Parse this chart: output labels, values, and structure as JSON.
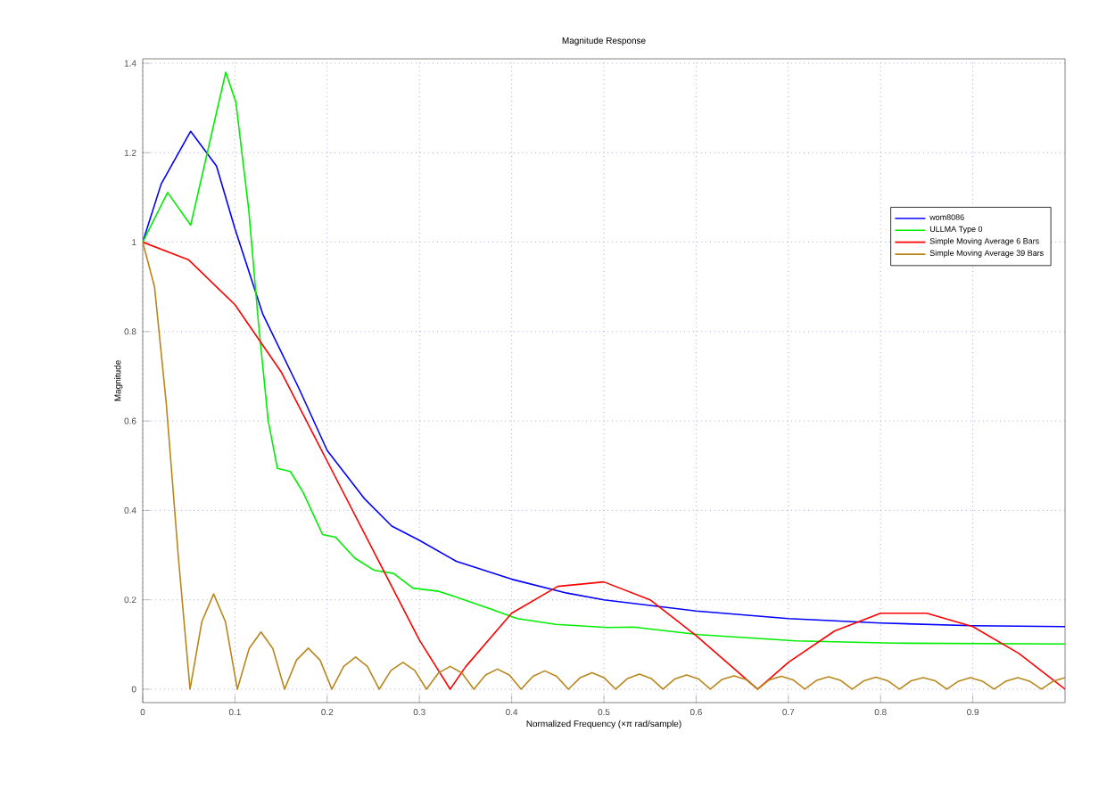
{
  "chart_data": {
    "type": "line",
    "title": "Magnitude Response",
    "xlabel": "Normalized Frequency (×π rad/sample)",
    "ylabel": "Magnitude",
    "xlim": [
      0,
      1
    ],
    "ylim": [
      -0.03,
      1.41
    ],
    "xticks": [
      0,
      0.1,
      0.2,
      0.3,
      0.4,
      0.5,
      0.6,
      0.7,
      0.8,
      0.9
    ],
    "yticks": [
      0,
      0.2,
      0.4,
      0.6,
      0.8,
      1,
      1.2,
      1.4
    ],
    "grid": true,
    "legend": "top right",
    "series": [
      {
        "name": "wom8086",
        "color": "#0000ff",
        "x": [
          0,
          0.02,
          0.052,
          0.08,
          0.1,
          0.13,
          0.17,
          0.2,
          0.24,
          0.27,
          0.3,
          0.34,
          0.4,
          0.46,
          0.5,
          0.6,
          0.7,
          0.8,
          0.9,
          1.0
        ],
        "values": [
          1,
          1.13,
          1.248,
          1.17,
          1.03,
          0.84,
          0.67,
          0.534,
          0.427,
          0.365,
          0.333,
          0.286,
          0.246,
          0.215,
          0.2,
          0.175,
          0.158,
          0.148,
          0.142,
          0.14
        ]
      },
      {
        "name": "ULLMA Type 0",
        "color": "#00ee00",
        "x": [
          0,
          0.027,
          0.052,
          0.09,
          0.101,
          0.115,
          0.125,
          0.136,
          0.146,
          0.16,
          0.174,
          0.195,
          0.209,
          0.23,
          0.251,
          0.272,
          0.293,
          0.321,
          0.35,
          0.378,
          0.406,
          0.448,
          0.504,
          0.532,
          0.603,
          0.708,
          0.813,
          1.0
        ],
        "values": [
          1,
          1.111,
          1.038,
          1.38,
          1.313,
          1.071,
          0.83,
          0.601,
          0.494,
          0.487,
          0.44,
          0.346,
          0.34,
          0.293,
          0.266,
          0.259,
          0.226,
          0.219,
          0.199,
          0.179,
          0.158,
          0.145,
          0.138,
          0.139,
          0.122,
          0.108,
          0.103,
          0.101
        ]
      },
      {
        "name": "Simple Moving Average 6 Bars",
        "color": "#ff0000",
        "x": [
          0,
          0.05,
          0.1,
          0.15,
          0.2,
          0.25,
          0.3,
          0.3333,
          0.35,
          0.4,
          0.45,
          0.5,
          0.55,
          0.6,
          0.65,
          0.6667,
          0.7,
          0.75,
          0.8,
          0.85,
          0.9,
          0.95,
          1.0
        ],
        "values": [
          1,
          0.96,
          0.86,
          0.71,
          0.51,
          0.31,
          0.11,
          0,
          0.05,
          0.17,
          0.23,
          0.24,
          0.2,
          0.12,
          0.03,
          0,
          0.06,
          0.13,
          0.17,
          0.17,
          0.14,
          0.08,
          0
        ]
      },
      {
        "name": "Simple Moving Average 39 Bars",
        "color": "#b8861b",
        "x": [
          0,
          0.0128,
          0.0256,
          0.0385,
          0.0513,
          0.0641,
          0.0769,
          0.0897,
          0.1026,
          0.1154,
          0.1282,
          0.141,
          0.1538,
          0.1667,
          0.1795,
          0.1923,
          0.2051,
          0.2179,
          0.2308,
          0.2436,
          0.2564,
          0.2692,
          0.2821,
          0.2949,
          0.3077,
          0.3205,
          0.3333,
          0.3462,
          0.359,
          0.3718,
          0.3846,
          0.3974,
          0.4103,
          0.4231,
          0.4359,
          0.4487,
          0.4615,
          0.4744,
          0.4872,
          0.5,
          0.5128,
          0.5256,
          0.5385,
          0.5513,
          0.5641,
          0.5769,
          0.5897,
          0.6026,
          0.6154,
          0.6282,
          0.641,
          0.6538,
          0.6667,
          0.6795,
          0.6923,
          0.7051,
          0.7179,
          0.7308,
          0.7436,
          0.7564,
          0.7692,
          0.7821,
          0.7949,
          0.8077,
          0.8205,
          0.8333,
          0.8462,
          0.859,
          0.8718,
          0.8846,
          0.8974,
          0.9103,
          0.9231,
          0.9359,
          0.9487,
          0.9615,
          0.9744,
          0.9872,
          1.0
        ],
        "values": [
          1,
          0.9,
          0.638,
          0.299,
          0,
          0.151,
          0.213,
          0.151,
          0,
          0.091,
          0.128,
          0.091,
          0,
          0.065,
          0.092,
          0.065,
          0,
          0.051,
          0.072,
          0.051,
          0,
          0.042,
          0.06,
          0.042,
          0,
          0.036,
          0.051,
          0.036,
          0,
          0.032,
          0.045,
          0.032,
          0,
          0.029,
          0.041,
          0.029,
          0,
          0.026,
          0.037,
          0.026,
          0,
          0.024,
          0.034,
          0.024,
          0,
          0.023,
          0.032,
          0.023,
          0,
          0.022,
          0.03,
          0.022,
          0,
          0.021,
          0.029,
          0.021,
          0,
          0.02,
          0.028,
          0.02,
          0,
          0.019,
          0.027,
          0.019,
          0,
          0.019,
          0.026,
          0.019,
          0,
          0.018,
          0.026,
          0.018,
          0,
          0.018,
          0.026,
          0.018,
          0,
          0.018,
          0.026
        ]
      }
    ]
  }
}
